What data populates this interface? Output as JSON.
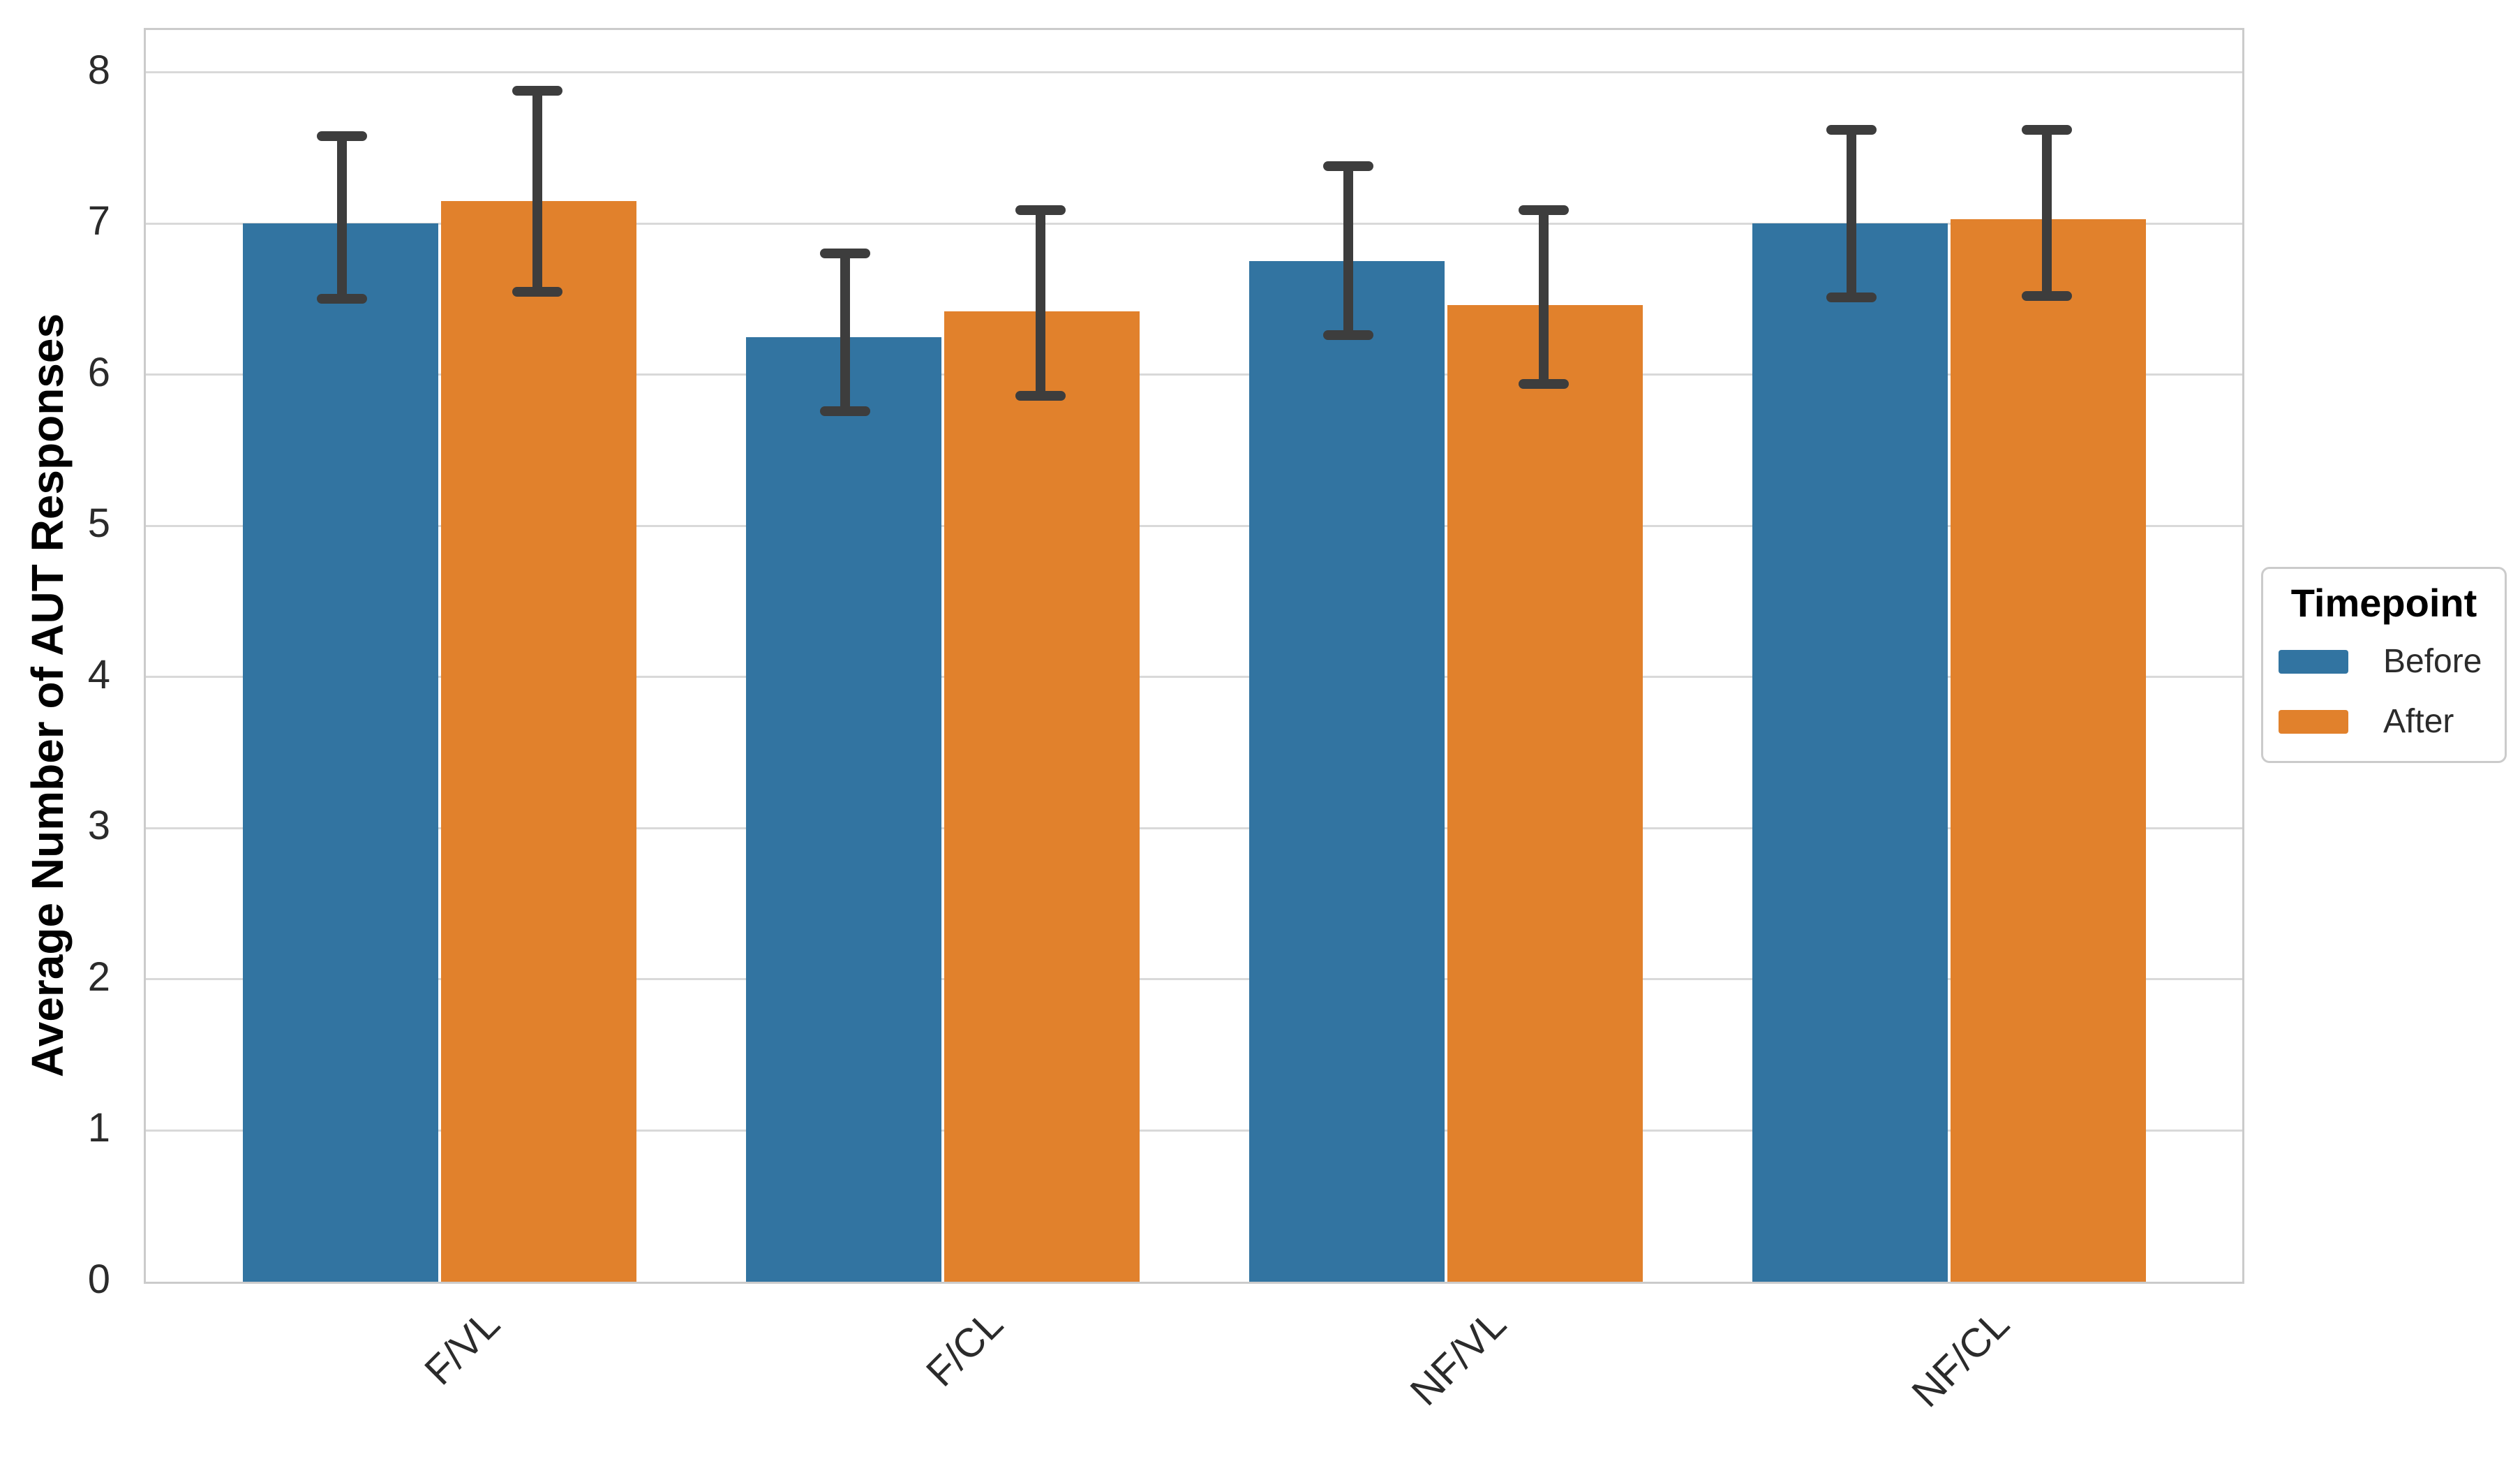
{
  "chart_data": {
    "type": "bar",
    "title": "",
    "xlabel": "",
    "ylabel": "Average Number of AUT Responses",
    "categories": [
      "F/VL",
      "F/CL",
      "NF/VL",
      "NF/CL"
    ],
    "series": [
      {
        "name": "Before",
        "color": "#3274a1",
        "values": [
          7.0,
          6.25,
          6.75,
          7.0
        ],
        "err_low": [
          6.5,
          5.76,
          6.26,
          6.51
        ],
        "err_high": [
          7.58,
          6.8,
          7.38,
          7.62
        ]
      },
      {
        "name": "After",
        "color": "#e1812c",
        "values": [
          7.15,
          6.42,
          6.46,
          7.03
        ],
        "err_low": [
          6.55,
          5.86,
          5.94,
          6.52
        ],
        "err_high": [
          7.88,
          7.09,
          7.09,
          7.62
        ]
      }
    ],
    "yticks": [
      0,
      1,
      2,
      3,
      4,
      5,
      6,
      7,
      8
    ],
    "ylim": [
      0,
      8.28
    ],
    "grid": true,
    "legend": {
      "title": "Timepoint",
      "position": "right"
    },
    "error_bars": true,
    "colors": {
      "errorbar": "#3d3d3d",
      "gridline": "#d9d9d9",
      "spine": "#cbcbcb",
      "tick_text": "#2b2b2b",
      "background": "#ffffff"
    }
  }
}
